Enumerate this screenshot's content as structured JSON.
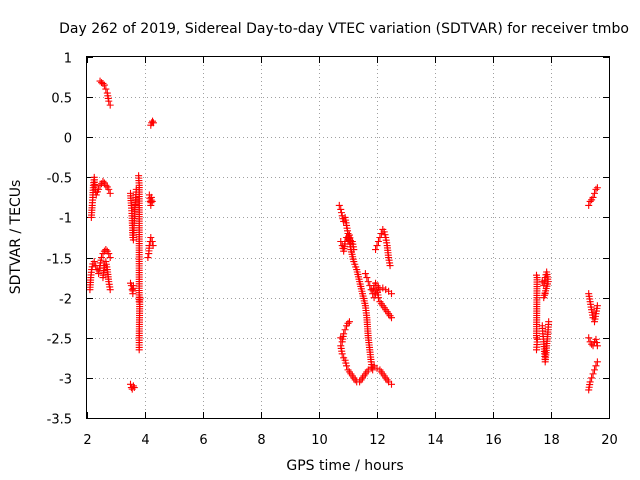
{
  "chart_data": {
    "type": "scatter",
    "title": "Day 262 of 2019, Sidereal Day-to-day VTEC variation (SDTVAR) for receiver tmbo",
    "xlabel": "GPS time / hours",
    "ylabel": "SDTVAR / TECUs",
    "xlim": [
      2,
      20
    ],
    "ylim": [
      -3.5,
      1
    ],
    "xticks": [
      2,
      4,
      6,
      8,
      10,
      12,
      14,
      16,
      18,
      20
    ],
    "yticks": [
      1,
      0.5,
      0,
      -0.5,
      -1,
      -1.5,
      -2,
      -2.5,
      -3,
      -3.5
    ],
    "xtick_labels": [
      "2",
      "4",
      "6",
      "8",
      "10",
      "12",
      "14",
      "16",
      "18",
      "20"
    ],
    "ytick_labels": [
      "1",
      "0.5",
      "0",
      "-0.5",
      "-1",
      "-1.5",
      "-2",
      "-2.5",
      "-3",
      "-3.5"
    ],
    "grid": true,
    "marker": "+",
    "color": "#ff0000",
    "series": [
      {
        "name": "SDTVAR",
        "segments": [
          [
            [
              2.15,
              -1.0
            ],
            [
              2.18,
              -0.85
            ],
            [
              2.2,
              -0.75
            ],
            [
              2.22,
              -0.6
            ],
            [
              2.25,
              -0.5
            ],
            [
              2.28,
              -0.65
            ],
            [
              2.32,
              -0.72
            ],
            [
              2.36,
              -0.68
            ],
            [
              2.4,
              -0.65
            ],
            [
              2.45,
              -0.6
            ],
            [
              2.5,
              -0.58
            ],
            [
              2.55,
              -0.55
            ],
            [
              2.6,
              -0.57
            ],
            [
              2.65,
              -0.6
            ],
            [
              2.7,
              -0.62
            ],
            [
              2.75,
              -0.65
            ],
            [
              2.8,
              -0.7
            ]
          ],
          [
            [
              2.1,
              -1.9
            ],
            [
              2.13,
              -1.75
            ],
            [
              2.16,
              -1.65
            ],
            [
              2.2,
              -1.58
            ],
            [
              2.25,
              -1.55
            ],
            [
              2.3,
              -1.6
            ],
            [
              2.35,
              -1.65
            ],
            [
              2.4,
              -1.7
            ],
            [
              2.45,
              -1.6
            ],
            [
              2.5,
              -1.5
            ],
            [
              2.55,
              -1.45
            ],
            [
              2.6,
              -1.42
            ],
            [
              2.65,
              -1.4
            ],
            [
              2.7,
              -1.42
            ],
            [
              2.75,
              -1.45
            ],
            [
              2.8,
              -1.5
            ]
          ],
          [
            [
              2.55,
              -1.75
            ],
            [
              2.6,
              -1.6
            ],
            [
              2.65,
              -1.55
            ],
            [
              2.7,
              -1.65
            ],
            [
              2.75,
              -1.8
            ],
            [
              2.8,
              -1.9
            ]
          ],
          [
            [
              2.45,
              0.7
            ],
            [
              2.5,
              0.68
            ],
            [
              2.55,
              0.67
            ],
            [
              2.6,
              0.65
            ],
            [
              2.65,
              0.6
            ],
            [
              2.7,
              0.55
            ],
            [
              2.75,
              0.45
            ],
            [
              2.8,
              0.4
            ]
          ],
          [
            [
              3.5,
              -0.7
            ],
            [
              3.53,
              -0.85
            ],
            [
              3.55,
              -0.95
            ],
            [
              3.58,
              -1.25
            ],
            [
              3.6,
              -1.28
            ],
            [
              3.62,
              -1.1
            ],
            [
              3.65,
              -0.9
            ],
            [
              3.68,
              -0.75
            ],
            [
              3.7,
              -0.65
            ]
          ],
          [
            [
              3.5,
              -1.82
            ],
            [
              3.53,
              -1.85
            ],
            [
              3.56,
              -1.9
            ],
            [
              3.58,
              -1.95
            ],
            [
              3.6,
              -1.85
            ]
          ],
          [
            [
              3.5,
              -3.08
            ],
            [
              3.53,
              -3.12
            ],
            [
              3.56,
              -3.14
            ],
            [
              3.6,
              -3.1
            ],
            [
              3.63,
              -3.12
            ]
          ],
          [
            [
              3.78,
              -0.48
            ],
            [
              3.8,
              -0.6
            ],
            [
              3.8,
              -2.05
            ],
            [
              3.82,
              -2.0
            ],
            [
              3.8,
              -2.5
            ],
            [
              3.8,
              -2.65
            ]
          ],
          [
            [
              4.15,
              -0.72
            ],
            [
              4.18,
              -0.8
            ],
            [
              4.2,
              -0.85
            ],
            [
              4.22,
              -0.75
            ],
            [
              4.25,
              -0.8
            ]
          ],
          [
            [
              4.1,
              -1.5
            ],
            [
              4.13,
              -1.45
            ],
            [
              4.15,
              -1.35
            ],
            [
              4.18,
              -1.3
            ],
            [
              4.2,
              -1.25
            ],
            [
              4.25,
              -1.3
            ],
            [
              4.28,
              -1.35
            ]
          ],
          [
            [
              4.2,
              0.15
            ],
            [
              4.23,
              0.18
            ],
            [
              4.26,
              0.2
            ],
            [
              4.29,
              0.18
            ]
          ],
          [
            [
              10.7,
              -0.85
            ],
            [
              10.75,
              -0.9
            ],
            [
              10.8,
              -0.98
            ],
            [
              10.85,
              -1.05
            ],
            [
              10.9,
              -1.0
            ],
            [
              10.95,
              -1.1
            ],
            [
              11.0,
              -1.2
            ],
            [
              11.05,
              -1.3
            ],
            [
              11.1,
              -1.4
            ],
            [
              11.2,
              -1.55
            ],
            [
              11.3,
              -1.65
            ],
            [
              11.4,
              -1.8
            ],
            [
              11.5,
              -1.95
            ],
            [
              11.6,
              -2.1
            ],
            [
              11.65,
              -2.25
            ],
            [
              11.7,
              -2.5
            ],
            [
              11.75,
              -2.65
            ],
            [
              11.8,
              -2.8
            ],
            [
              11.85,
              -2.9
            ]
          ],
          [
            [
              10.75,
              -1.3
            ],
            [
              10.8,
              -1.35
            ],
            [
              10.85,
              -1.42
            ],
            [
              10.9,
              -1.3
            ],
            [
              10.95,
              -1.25
            ],
            [
              11.0,
              -1.28
            ],
            [
              11.05,
              -1.22
            ],
            [
              11.1,
              -1.32
            ],
            [
              11.15,
              -1.3
            ],
            [
              11.2,
              -1.4
            ]
          ],
          [
            [
              10.75,
              -2.5
            ],
            [
              10.8,
              -2.55
            ],
            [
              10.85,
              -2.45
            ],
            [
              10.9,
              -2.4
            ],
            [
              10.95,
              -2.35
            ],
            [
              11.0,
              -2.32
            ],
            [
              11.05,
              -2.3
            ]
          ],
          [
            [
              10.75,
              -2.6
            ],
            [
              10.8,
              -2.7
            ],
            [
              10.85,
              -2.75
            ],
            [
              10.9,
              -2.78
            ],
            [
              10.95,
              -2.85
            ],
            [
              11.0,
              -2.9
            ],
            [
              11.1,
              -2.95
            ],
            [
              11.2,
              -3.0
            ],
            [
              11.3,
              -3.05
            ],
            [
              11.4,
              -3.05
            ],
            [
              11.5,
              -3.0
            ],
            [
              11.6,
              -2.95
            ],
            [
              11.7,
              -2.9
            ],
            [
              11.8,
              -2.88
            ],
            [
              11.9,
              -2.85
            ],
            [
              12.0,
              -2.88
            ],
            [
              12.1,
              -2.9
            ],
            [
              12.2,
              -2.95
            ],
            [
              12.3,
              -3.0
            ],
            [
              12.4,
              -3.05
            ],
            [
              12.5,
              -3.08
            ]
          ],
          [
            [
              11.6,
              -1.7
            ],
            [
              11.65,
              -1.75
            ],
            [
              11.7,
              -1.8
            ],
            [
              11.75,
              -1.85
            ],
            [
              11.8,
              -1.9
            ],
            [
              11.85,
              -1.95
            ],
            [
              11.9,
              -1.85
            ],
            [
              11.95,
              -1.82
            ],
            [
              12.0,
              -1.85
            ],
            [
              12.1,
              -1.9
            ],
            [
              12.2,
              -1.88
            ],
            [
              12.3,
              -1.9
            ],
            [
              12.4,
              -1.92
            ],
            [
              12.5,
              -1.95
            ]
          ],
          [
            [
              11.9,
              -2.0
            ],
            [
              11.95,
              -1.95
            ],
            [
              12.0,
              -1.9
            ],
            [
              12.05,
              -2.0
            ],
            [
              12.1,
              -2.05
            ],
            [
              12.2,
              -2.1
            ],
            [
              12.3,
              -2.15
            ],
            [
              12.4,
              -2.2
            ],
            [
              12.5,
              -2.25
            ]
          ],
          [
            [
              11.95,
              -1.4
            ],
            [
              12.0,
              -1.35
            ],
            [
              12.05,
              -1.3
            ],
            [
              12.1,
              -1.25
            ],
            [
              12.15,
              -1.2
            ],
            [
              12.2,
              -1.15
            ],
            [
              12.25,
              -1.18
            ],
            [
              12.3,
              -1.25
            ],
            [
              12.35,
              -1.35
            ],
            [
              12.4,
              -1.5
            ],
            [
              12.45,
              -1.6
            ]
          ],
          [
            [
              17.5,
              -1.72
            ],
            [
              17.52,
              -1.75
            ],
            [
              17.5,
              -2.5
            ],
            [
              17.53,
              -2.52
            ],
            [
              17.5,
              -2.65
            ]
          ],
          [
            [
              17.7,
              -1.8
            ],
            [
              17.75,
              -1.85
            ],
            [
              17.8,
              -1.75
            ],
            [
              17.85,
              -1.68
            ],
            [
              17.9,
              -1.8
            ],
            [
              17.75,
              -2.0
            ],
            [
              17.8,
              -1.95
            ]
          ],
          [
            [
              17.7,
              -2.35
            ],
            [
              17.72,
              -2.45
            ],
            [
              17.75,
              -2.55
            ],
            [
              17.78,
              -2.7
            ],
            [
              17.8,
              -2.8
            ],
            [
              17.85,
              -2.6
            ],
            [
              17.9,
              -2.4
            ],
            [
              17.92,
              -2.3
            ]
          ],
          [
            [
              19.3,
              -0.85
            ],
            [
              19.35,
              -0.8
            ],
            [
              19.4,
              -0.78
            ],
            [
              19.45,
              -0.75
            ],
            [
              19.5,
              -0.7
            ],
            [
              19.55,
              -0.65
            ],
            [
              19.6,
              -0.63
            ]
          ],
          [
            [
              19.3,
              -1.95
            ],
            [
              19.35,
              -2.05
            ],
            [
              19.4,
              -2.15
            ],
            [
              19.45,
              -2.25
            ],
            [
              19.5,
              -2.3
            ],
            [
              19.55,
              -2.2
            ],
            [
              19.6,
              -2.1
            ]
          ],
          [
            [
              19.3,
              -2.5
            ],
            [
              19.35,
              -2.55
            ],
            [
              19.4,
              -2.58
            ],
            [
              19.45,
              -2.6
            ],
            [
              19.5,
              -2.55
            ],
            [
              19.55,
              -2.52
            ],
            [
              19.6,
              -2.6
            ]
          ],
          [
            [
              19.3,
              -3.15
            ],
            [
              19.35,
              -3.05
            ],
            [
              19.4,
              -3.0
            ],
            [
              19.45,
              -2.95
            ],
            [
              19.5,
              -2.9
            ],
            [
              19.55,
              -2.85
            ],
            [
              19.6,
              -2.8
            ]
          ]
        ]
      }
    ]
  }
}
